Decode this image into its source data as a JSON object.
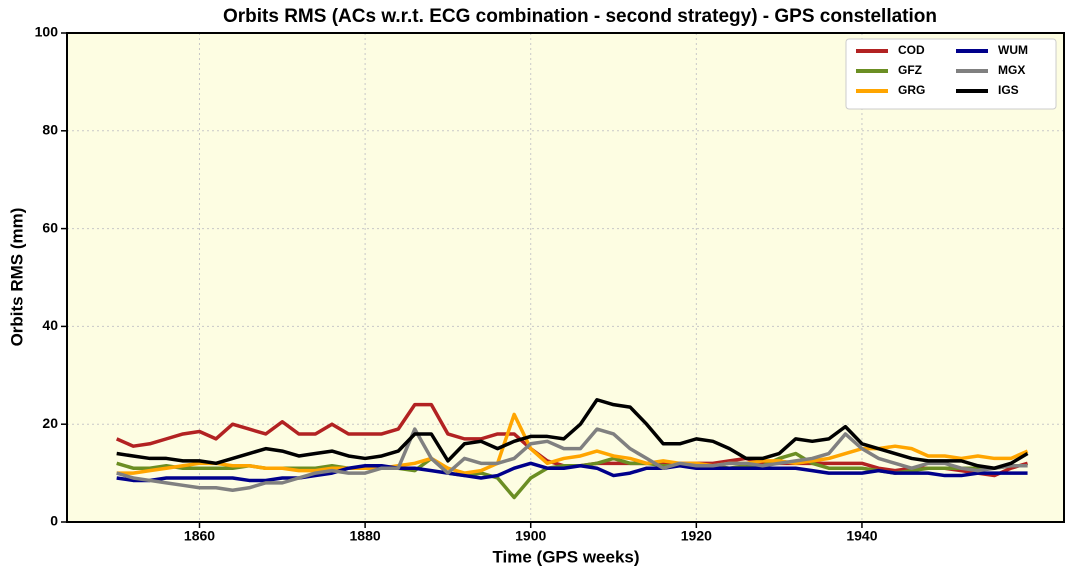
{
  "chart_data": {
    "type": "line",
    "title": "Orbits RMS (ACs w.r.t. ECG combination - second strategy) - GPS constellation",
    "x_label": "Time (GPS weeks)",
    "y_label": "Orbits RMS (mm)",
    "xlim": [
      1844,
      1964.4
    ],
    "xticks": [
      1860,
      1880,
      1900,
      1920,
      1940
    ],
    "ylim": [
      0,
      100
    ],
    "yticks": [
      0,
      20,
      40,
      60,
      80,
      100
    ],
    "grid": true,
    "legend": "upper right",
    "background": "#fdfde2",
    "x": [
      1850,
      1852,
      1854,
      1856,
      1858,
      1860,
      1862,
      1864,
      1866,
      1868,
      1870,
      1872,
      1874,
      1876,
      1878,
      1880,
      1882,
      1884,
      1886,
      1888,
      1890,
      1892,
      1894,
      1896,
      1898,
      1900,
      1902,
      1904,
      1906,
      1908,
      1910,
      1912,
      1914,
      1916,
      1918,
      1920,
      1922,
      1924,
      1926,
      1928,
      1930,
      1932,
      1934,
      1936,
      1938,
      1940,
      1942,
      1944,
      1946,
      1948,
      1950,
      1952,
      1954,
      1956,
      1958,
      1960
    ],
    "series": [
      {
        "name": "COD",
        "color": "#b22222",
        "values": [
          17,
          15.5,
          16,
          17,
          18,
          18.5,
          17,
          20,
          19,
          18,
          20.5,
          18,
          18,
          20,
          18,
          18,
          18,
          19,
          24,
          24,
          18,
          17,
          17,
          18,
          18,
          15,
          12.5,
          11.5,
          11.5,
          12,
          12,
          12,
          12,
          12,
          12,
          12,
          12,
          12.5,
          13,
          12,
          12,
          12,
          12,
          12,
          12,
          12,
          11,
          10.5,
          11,
          11,
          11,
          10.5,
          10,
          9.5,
          11,
          12
        ]
      },
      {
        "name": "GFZ",
        "color": "#6b8e23",
        "values": [
          12,
          11,
          11,
          11.5,
          11,
          11,
          11,
          11,
          11.5,
          11,
          11,
          11,
          11,
          11.5,
          11,
          11,
          11,
          11,
          10.5,
          13,
          10,
          9.5,
          10,
          9,
          5,
          9,
          11,
          11.5,
          11.5,
          12,
          13,
          12,
          12,
          11.5,
          11.5,
          11.5,
          11.5,
          11,
          11.5,
          11.5,
          13,
          14,
          12,
          11,
          11,
          11,
          10.5,
          10,
          10.5,
          11,
          11,
          11,
          11,
          11,
          11.5,
          11.5
        ]
      },
      {
        "name": "GRG",
        "color": "#ffa500",
        "values": [
          10,
          10,
          10.5,
          11,
          11.5,
          12,
          12,
          11.5,
          11.5,
          11,
          11,
          10.5,
          10.5,
          11,
          11,
          11,
          11,
          11.5,
          12,
          13,
          11,
          10,
          10.5,
          12,
          22,
          15,
          12,
          13,
          13.5,
          14.5,
          13.5,
          13,
          12,
          12.5,
          12,
          12,
          11.5,
          12,
          12,
          12.5,
          12.5,
          12,
          12.5,
          13,
          14,
          15,
          15,
          15.5,
          15,
          13.5,
          13.5,
          13,
          13.5,
          13,
          13,
          14.5
        ]
      },
      {
        "name": "WUM",
        "color": "#00008b",
        "values": [
          9,
          8.5,
          8.5,
          9,
          9,
          9,
          9,
          9,
          8.5,
          8.5,
          9,
          9,
          9.5,
          10,
          11,
          11.5,
          11.5,
          11,
          11,
          10.5,
          10,
          9.5,
          9,
          9.5,
          11,
          12,
          11,
          11,
          11.5,
          11,
          9.5,
          10,
          11,
          11,
          11.5,
          11,
          11,
          11,
          11,
          11,
          11,
          11,
          10.5,
          10,
          10,
          10,
          10.5,
          10,
          10,
          10,
          9.5,
          9.5,
          10,
          10,
          10,
          10
        ]
      },
      {
        "name": "MGX",
        "color": "#808080",
        "values": [
          10,
          9,
          8.5,
          8,
          7.5,
          7,
          7,
          6.5,
          7,
          8,
          8,
          9,
          10,
          10.5,
          10,
          10,
          11,
          11,
          19,
          13,
          10,
          13,
          12,
          12,
          13,
          16,
          16.5,
          15,
          15,
          19,
          18,
          15,
          13,
          11,
          12,
          11.5,
          11.5,
          12,
          12,
          11.5,
          12,
          12.5,
          13,
          14,
          18,
          15,
          13,
          12,
          11,
          12,
          12,
          11,
          10.5,
          11,
          11.5,
          11.5
        ]
      },
      {
        "name": "IGS",
        "color": "#000000",
        "values": [
          14,
          13.5,
          13,
          13,
          12.5,
          12.5,
          12,
          13,
          14,
          15,
          14.5,
          13.5,
          14,
          14.5,
          13.5,
          13,
          13.5,
          14.5,
          18,
          18,
          12.5,
          16,
          16.5,
          15,
          16.5,
          17.5,
          17.5,
          17,
          20,
          25,
          24,
          23.5,
          20,
          16,
          16,
          17,
          16.5,
          15,
          13,
          13,
          14,
          17,
          16.5,
          17,
          19.5,
          16,
          15,
          14,
          13,
          12.5,
          12.5,
          12.5,
          11.5,
          11,
          12,
          14
        ]
      }
    ]
  }
}
